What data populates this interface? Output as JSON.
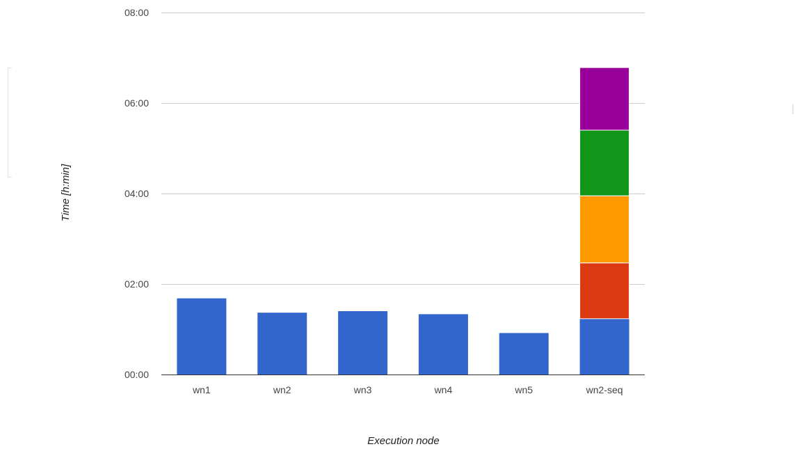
{
  "chart_data": {
    "type": "bar",
    "stacked": true,
    "xlabel": "Execution node",
    "ylabel": "Time [h:min]",
    "y_unit": "minutes",
    "ylim": [
      0,
      480
    ],
    "y_ticks": [
      {
        "value": 0,
        "label": "00:00"
      },
      {
        "value": 120,
        "label": "02:00"
      },
      {
        "value": 240,
        "label": "04:00"
      },
      {
        "value": 360,
        "label": "06:00"
      },
      {
        "value": 480,
        "label": "08:00"
      }
    ],
    "grid": true,
    "categories": [
      "wn1",
      "wn2",
      "wn3",
      "wn4",
      "wn5",
      "wn2-seq"
    ],
    "series": [
      {
        "color": "#3366cc",
        "values": [
          101,
          82,
          84,
          80,
          55,
          74
        ]
      },
      {
        "color": "#dc3912",
        "values": [
          0,
          0,
          0,
          0,
          0,
          74
        ]
      },
      {
        "color": "#ff9900",
        "values": [
          0,
          0,
          0,
          0,
          0,
          89
        ]
      },
      {
        "color": "#109618",
        "values": [
          0,
          0,
          0,
          0,
          0,
          87
        ]
      },
      {
        "color": "#990099",
        "values": [
          0,
          0,
          0,
          0,
          0,
          83
        ]
      }
    ]
  }
}
